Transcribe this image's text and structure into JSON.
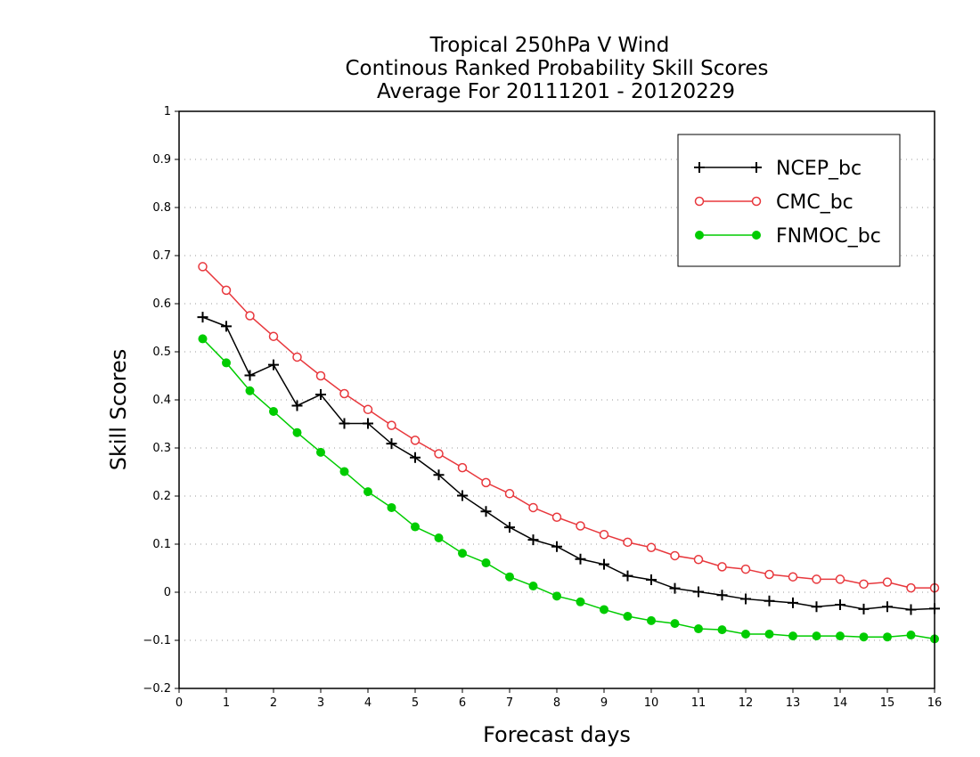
{
  "chart_data": {
    "type": "line",
    "title": [
      "Tropical 250hPa V Wind",
      "Continous Ranked Probability Skill Scores",
      "Average For 20111201 - 20120229"
    ],
    "xlabel": "Forecast days",
    "ylabel": "Skill Scores",
    "xlim": [
      0,
      16
    ],
    "ylim": [
      -0.2,
      1
    ],
    "xticks": [
      "0",
      "1",
      "2",
      "3",
      "4",
      "5",
      "6",
      "7",
      "8",
      "9",
      "10",
      "11",
      "12",
      "13",
      "14",
      "15",
      "16"
    ],
    "yticks": [
      "-0.2",
      "-0.1",
      "0",
      "0.1",
      "0.2",
      "0.3",
      "0.4",
      "0.5",
      "0.6",
      "0.7",
      "0.8",
      "0.9",
      "1"
    ],
    "grid": "horizontal dotted",
    "legend_position": "top-right",
    "x": [
      0.5,
      1,
      1.5,
      2,
      2.5,
      3,
      3.5,
      4,
      4.5,
      5,
      5.5,
      6,
      6.5,
      7,
      7.5,
      8,
      8.5,
      9,
      9.5,
      10,
      10.5,
      11,
      11.5,
      12,
      12.5,
      13,
      13.5,
      14,
      14.5,
      15,
      15.5,
      16
    ],
    "series": [
      {
        "name": "NCEP_bc",
        "color": "#000000",
        "marker": "plus",
        "values": [
          0.572,
          0.553,
          0.451,
          0.473,
          0.388,
          0.411,
          0.351,
          0.351,
          0.309,
          0.28,
          0.244,
          0.201,
          0.168,
          0.135,
          0.109,
          0.095,
          0.069,
          0.058,
          0.034,
          0.026,
          0.008,
          0.001,
          -0.006,
          -0.014,
          -0.018,
          -0.022,
          -0.03,
          -0.026,
          -0.035,
          -0.03,
          -0.036,
          -0.034
        ]
      },
      {
        "name": "CMC_bc",
        "color": "#e8383d",
        "marker": "open-circle",
        "values": [
          0.677,
          0.628,
          0.575,
          0.532,
          0.489,
          0.45,
          0.413,
          0.38,
          0.347,
          0.316,
          0.288,
          0.259,
          0.228,
          0.205,
          0.176,
          0.156,
          0.138,
          0.12,
          0.104,
          0.093,
          0.076,
          0.068,
          0.053,
          0.048,
          0.037,
          0.032,
          0.027,
          0.027,
          0.017,
          0.021,
          0.009,
          0.009
        ]
      },
      {
        "name": "FNMOC_bc",
        "color": "#00cc00",
        "marker": "filled-circle",
        "values": [
          0.527,
          0.477,
          0.419,
          0.376,
          0.332,
          0.291,
          0.251,
          0.209,
          0.176,
          0.136,
          0.113,
          0.081,
          0.061,
          0.032,
          0.013,
          -0.008,
          -0.02,
          -0.036,
          -0.05,
          -0.059,
          -0.065,
          -0.076,
          -0.078,
          -0.087,
          -0.087,
          -0.091,
          -0.091,
          -0.091,
          -0.093,
          -0.093,
          -0.089,
          -0.097
        ]
      }
    ]
  }
}
